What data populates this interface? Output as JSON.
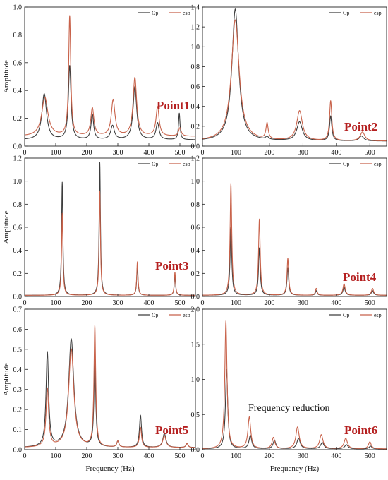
{
  "colors": {
    "cp": "#3d3d3d",
    "esp": "#c8624a",
    "point_label": "#b52020",
    "axis": "#222222"
  },
  "chart_data": [
    {
      "type": "line",
      "point_label": "Point1",
      "ylabel": "Amplitude",
      "xlabel": "",
      "xlim": [
        0,
        550
      ],
      "ylim": [
        0,
        1.0
      ],
      "xticks": [
        0,
        100,
        200,
        300,
        400,
        500
      ],
      "yticks": [
        0.0,
        0.2,
        0.4,
        0.6,
        0.8,
        1.0
      ],
      "legend": [
        "Cp",
        "esp"
      ],
      "legend_position": "top-right",
      "series": [
        {
          "name": "Cp",
          "baseline": 0.045,
          "peaks": [
            [
              63,
              0.33,
              9
            ],
            [
              145,
              0.53,
              5
            ],
            [
              218,
              0.18,
              5
            ],
            [
              283,
              0.1,
              7
            ],
            [
              355,
              0.38,
              7
            ],
            [
              428,
              0.12,
              6
            ],
            [
              498,
              0.19,
              3
            ]
          ]
        },
        {
          "name": "esp",
          "baseline": 0.07,
          "peaks": [
            [
              65,
              0.28,
              12
            ],
            [
              145,
              0.86,
              4
            ],
            [
              218,
              0.2,
              6
            ],
            [
              285,
              0.26,
              7
            ],
            [
              355,
              0.42,
              7
            ],
            [
              428,
              0.21,
              6
            ],
            [
              500,
              0.06,
              5
            ]
          ]
        }
      ]
    },
    {
      "type": "line",
      "point_label": "Point2",
      "ylabel": "",
      "xlabel": "",
      "xlim": [
        0,
        550
      ],
      "ylim": [
        0,
        1.4
      ],
      "xticks": [
        0,
        100,
        200,
        300,
        400,
        500
      ],
      "yticks": [
        0.0,
        0.2,
        0.4,
        0.6,
        0.8,
        1.0,
        1.2,
        1.4
      ],
      "legend": [
        "Cp",
        "esp"
      ],
      "legend_position": "top-right",
      "series": [
        {
          "name": "Cp",
          "baseline": 0.05,
          "peaks": [
            [
              98,
              1.33,
              12
            ],
            [
              193,
              0.03,
              5
            ],
            [
              290,
              0.19,
              10
            ],
            [
              383,
              0.25,
              4
            ],
            [
              475,
              0.05,
              8
            ]
          ]
        },
        {
          "name": "esp",
          "baseline": 0.05,
          "peaks": [
            [
              98,
              1.22,
              14
            ],
            [
              193,
              0.16,
              4
            ],
            [
              290,
              0.3,
              10
            ],
            [
              383,
              0.4,
              4
            ],
            [
              478,
              0.09,
              8
            ]
          ]
        }
      ]
    },
    {
      "type": "line",
      "point_label": "Point3",
      "ylabel": "Amplitude",
      "xlabel": "",
      "xlim": [
        0,
        550
      ],
      "ylim": [
        0,
        1.2
      ],
      "xticks": [
        0,
        100,
        200,
        300,
        400,
        500
      ],
      "yticks": [
        0.0,
        0.2,
        0.4,
        0.6,
        0.8,
        1.0,
        1.2
      ],
      "legend": [
        "Cp",
        "esp"
      ],
      "legend_position": "top-right",
      "series": [
        {
          "name": "Cp",
          "baseline": 0.01,
          "peaks": [
            [
              121,
              0.98,
              2.5
            ],
            [
              242,
              1.15,
              2.5
            ],
            [
              363,
              0.25,
              2.5
            ],
            [
              484,
              0.17,
              2.5
            ]
          ]
        },
        {
          "name": "esp",
          "baseline": 0.01,
          "peaks": [
            [
              121,
              0.71,
              2.5
            ],
            [
              242,
              0.9,
              2.5
            ],
            [
              363,
              0.29,
              2.5
            ],
            [
              484,
              0.2,
              2.5
            ]
          ]
        }
      ]
    },
    {
      "type": "line",
      "point_label": "Point4",
      "ylabel": "",
      "xlabel": "",
      "xlim": [
        0,
        550
      ],
      "ylim": [
        0,
        1.2
      ],
      "xticks": [
        0,
        100,
        200,
        300,
        400,
        500
      ],
      "yticks": [
        0.0,
        0.2,
        0.4,
        0.6,
        0.8,
        1.0,
        1.2
      ],
      "legend": [
        "Cp",
        "esp"
      ],
      "legend_position": "top-right",
      "series": [
        {
          "name": "Cp",
          "baseline": 0.01,
          "peaks": [
            [
              85,
              0.59,
              3
            ],
            [
              170,
              0.41,
              3
            ],
            [
              255,
              0.24,
              3
            ],
            [
              340,
              0.04,
              3
            ],
            [
              423,
              0.07,
              4
            ],
            [
              508,
              0.04,
              4
            ]
          ]
        },
        {
          "name": "esp",
          "baseline": 0.01,
          "peaks": [
            [
              85,
              0.97,
              3
            ],
            [
              170,
              0.66,
              3
            ],
            [
              255,
              0.32,
              3
            ],
            [
              340,
              0.06,
              3
            ],
            [
              423,
              0.1,
              4
            ],
            [
              508,
              0.06,
              4
            ]
          ]
        }
      ]
    },
    {
      "type": "line",
      "point_label": "Point5",
      "ylabel": "Amplitude",
      "xlabel": "Frequency (Hz)",
      "xlim": [
        0,
        550
      ],
      "ylim": [
        0,
        0.7
      ],
      "xticks": [
        0,
        100,
        200,
        300,
        400,
        500
      ],
      "yticks": [
        0.0,
        0.1,
        0.2,
        0.3,
        0.4,
        0.5,
        0.6,
        0.7
      ],
      "legend": [
        "Cp",
        "esp"
      ],
      "legend_position": "top-right",
      "series": [
        {
          "name": "Cp",
          "baseline": 0.01,
          "peaks": [
            [
              73,
              0.47,
              5
            ],
            [
              150,
              0.54,
              10
            ],
            [
              226,
              0.42,
              3.5
            ],
            [
              300,
              0.03,
              4
            ],
            [
              373,
              0.16,
              4
            ],
            [
              450,
              0.07,
              6
            ],
            [
              523,
              0.02,
              4
            ]
          ]
        },
        {
          "name": "esp",
          "baseline": 0.01,
          "peaks": [
            [
              73,
              0.29,
              5
            ],
            [
              150,
              0.49,
              10
            ],
            [
              226,
              0.6,
              3.5
            ],
            [
              300,
              0.03,
              4
            ],
            [
              373,
              0.1,
              4
            ],
            [
              450,
              0.06,
              6
            ],
            [
              523,
              0.02,
              4
            ]
          ]
        }
      ]
    },
    {
      "type": "line",
      "point_label": "Point6",
      "ylabel": "",
      "xlabel": "Frequency (Hz)",
      "xlim": [
        0,
        550
      ],
      "ylim": [
        0,
        2.0
      ],
      "xticks": [
        0,
        100,
        200,
        300,
        400,
        500
      ],
      "yticks": [
        0.0,
        0.5,
        1.0,
        1.5,
        2.0
      ],
      "legend": [
        "Cp",
        "esp"
      ],
      "legend_position": "top-right",
      "annotation": "Frequency reduction",
      "series": [
        {
          "name": "Cp",
          "baseline": 0.01,
          "peaks": [
            [
              72,
              1.13,
              4
            ],
            [
              143,
              0.19,
              5
            ],
            [
              215,
              0.12,
              5
            ],
            [
              287,
              0.15,
              6
            ],
            [
              358,
              0.09,
              6
            ],
            [
              430,
              0.06,
              6
            ],
            [
              502,
              0.04,
              5
            ]
          ]
        },
        {
          "name": "esp",
          "baseline": 0.01,
          "peaks": [
            [
              70,
              1.82,
              4
            ],
            [
              140,
              0.45,
              5
            ],
            [
              212,
              0.16,
              5
            ],
            [
              284,
              0.31,
              6
            ],
            [
              355,
              0.2,
              6
            ],
            [
              428,
              0.15,
              6
            ],
            [
              500,
              0.1,
              5
            ]
          ]
        }
      ]
    }
  ]
}
